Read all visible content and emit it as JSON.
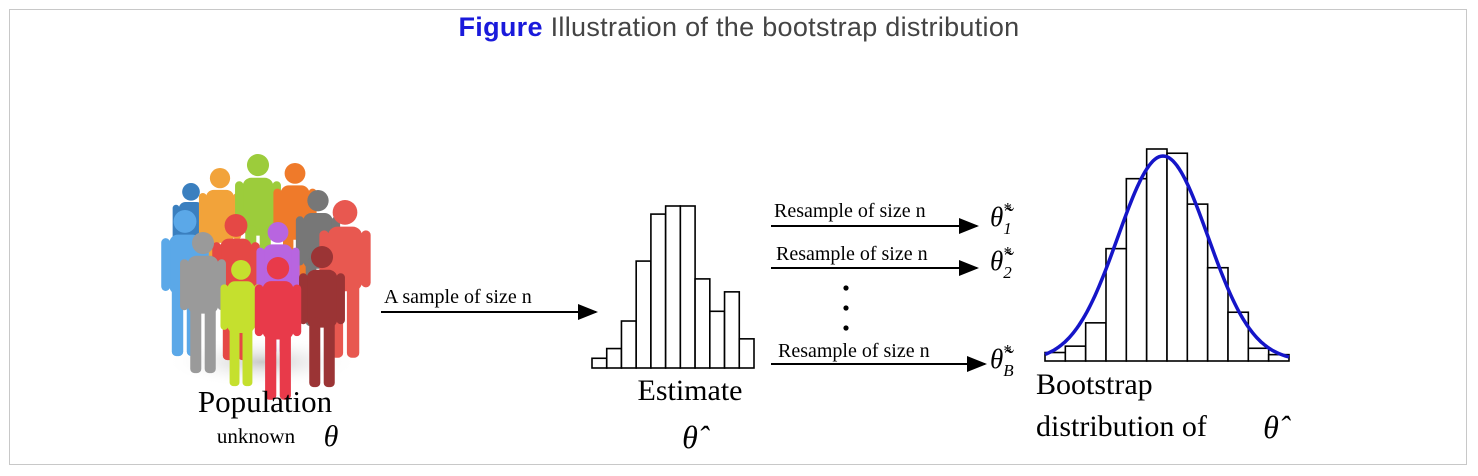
{
  "title": {
    "prefix": "Figure",
    "text": "Illustration of the bootstrap distribution"
  },
  "population": {
    "label": "Population",
    "sub_label": "unknown",
    "symbol": "θ"
  },
  "sample_arrow": {
    "label": "A sample of size n"
  },
  "estimate": {
    "label": "Estimate",
    "symbol": "θ̂"
  },
  "resamples": [
    {
      "label": "Resample of size n",
      "symbol": "θ̃",
      "sub": "1",
      "sup": "*"
    },
    {
      "label": "Resample of size n",
      "symbol": "θ̃",
      "sub": "2",
      "sup": "*"
    },
    {
      "label": "Resample of size n",
      "symbol": "θ̃",
      "sub": "B",
      "sup": "*"
    }
  ],
  "bootstrap": {
    "line1": "Bootstrap",
    "line2": "distribution of",
    "symbol": "θ̂"
  },
  "colors": {
    "title_accent": "#1a1adb",
    "curve": "#1515c8",
    "text": "#000000"
  },
  "sample_hist_heights": [
    0.06,
    0.12,
    0.29,
    0.66,
    0.95,
    1.0,
    1.0,
    0.55,
    0.35,
    0.47,
    0.18
  ],
  "bootstrap_hist_heights": [
    0.04,
    0.07,
    0.18,
    0.53,
    0.86,
    1.0,
    0.98,
    0.74,
    0.44,
    0.23,
    0.06,
    0.03
  ]
}
